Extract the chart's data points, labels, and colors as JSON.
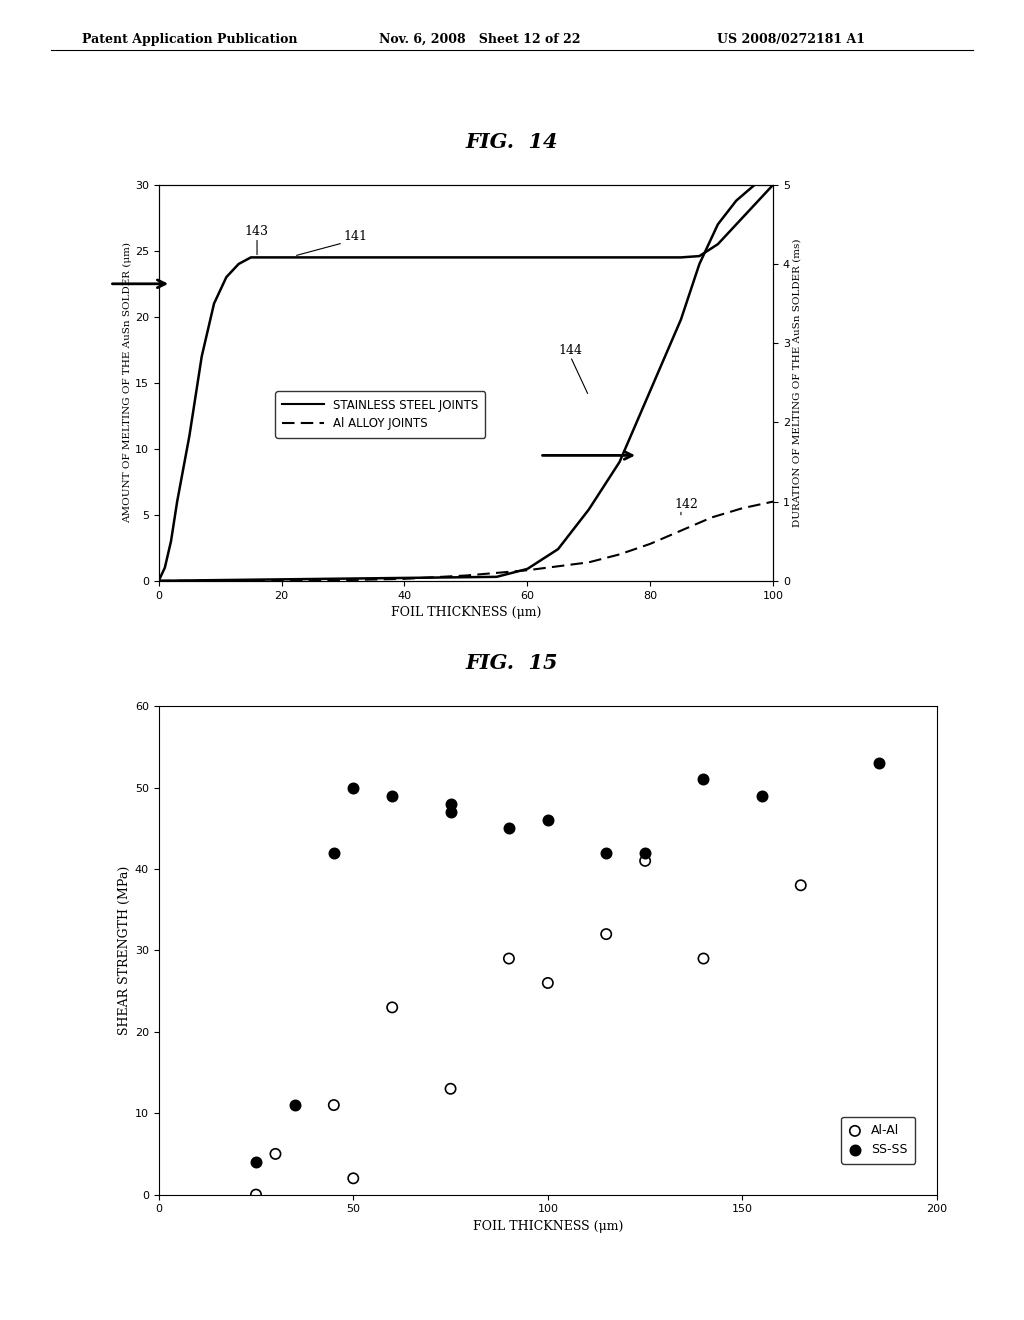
{
  "fig14_title": "FIG.  14",
  "fig15_title": "FIG.  15",
  "header_left": "Patent Application Publication",
  "header_mid": "Nov. 6, 2008   Sheet 12 of 22",
  "header_right": "US 2008/0272181 A1",
  "fig14": {
    "ss_x": [
      0,
      1,
      2,
      3,
      5,
      7,
      9,
      11,
      13,
      15,
      17,
      19,
      22,
      30,
      40,
      50,
      60,
      70,
      80,
      85,
      88,
      91,
      94,
      97,
      100
    ],
    "ss_y": [
      0,
      1,
      3,
      6,
      11,
      17,
      21,
      23,
      24.0,
      24.5,
      24.5,
      24.5,
      24.5,
      24.5,
      24.5,
      24.5,
      24.5,
      24.5,
      24.5,
      24.5,
      24.6,
      25.5,
      27.0,
      28.5,
      30.0
    ],
    "al_x": [
      0,
      20,
      30,
      40,
      50,
      60,
      70,
      75,
      80,
      85,
      90,
      95,
      100
    ],
    "al_y": [
      0,
      0,
      0.05,
      0.15,
      0.4,
      0.8,
      1.4,
      2.0,
      2.8,
      3.8,
      4.8,
      5.5,
      6.0
    ],
    "dur_x": [
      0,
      55,
      60,
      65,
      70,
      75,
      80,
      85,
      88,
      91,
      94,
      97,
      100
    ],
    "dur_y": [
      0,
      0.05,
      0.15,
      0.4,
      0.9,
      1.5,
      2.4,
      3.3,
      4.0,
      4.5,
      4.8,
      5.0,
      5.0
    ],
    "xlim": [
      0,
      100
    ],
    "ylim_left": [
      0,
      30
    ],
    "ylim_right": [
      0,
      5
    ],
    "xlabel": "FOIL THICKNESS (μm)",
    "ylabel_left": "AMOUNT OF MELTING OF THE AuSn SOLDER (μm)",
    "ylabel_right": "DURATION OF MELTING OF THE AuSn SOLDER (ms)",
    "label_ss": "STAINLESS STEEL JOINTS",
    "label_al": "Al ALLOY JOINTS"
  },
  "fig15": {
    "al_x": [
      25,
      30,
      45,
      50,
      60,
      75,
      90,
      100,
      115,
      125,
      140,
      165
    ],
    "al_y": [
      0,
      5,
      11,
      2,
      23,
      13,
      29,
      26,
      32,
      41,
      29,
      38
    ],
    "ss_x": [
      25,
      35,
      45,
      50,
      60,
      75,
      75,
      90,
      100,
      115,
      125,
      140,
      155,
      185
    ],
    "ss_y": [
      4,
      11,
      42,
      50,
      49,
      47,
      48,
      45,
      46,
      42,
      42,
      51,
      49,
      53
    ],
    "xlim": [
      0,
      200
    ],
    "ylim": [
      0,
      60
    ],
    "xlabel": "FOIL THICKNESS (μm)",
    "ylabel": "SHEAR STRENGTH (MPa)",
    "label_al": "Al-Al",
    "label_ss": "SS-SS"
  }
}
